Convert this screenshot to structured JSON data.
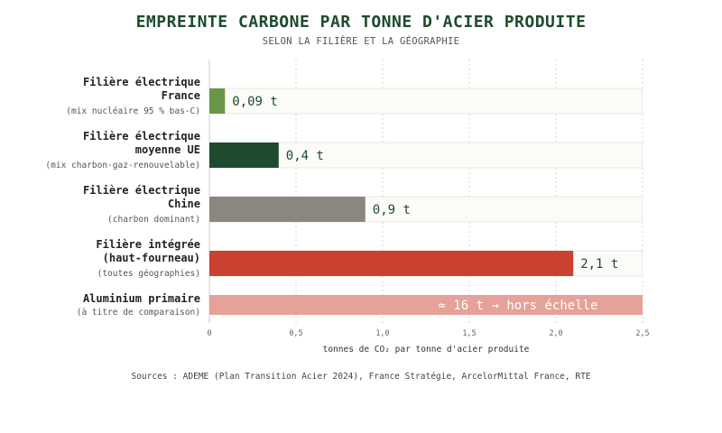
{
  "chart_data": {
    "type": "bar",
    "orientation": "horizontal",
    "title": "EMPREINTE CARBONE PAR TONNE D'ACIER PRODUITE",
    "subtitle": "SELON LA FILIÈRE ET LA GÉOGRAPHIE",
    "xlabel": "tonnes de CO₂ par tonne d'acier produite",
    "xlim": [
      0,
      2.5
    ],
    "ticks": [
      0,
      0.5,
      1,
      1.5,
      2,
      2.5
    ],
    "tick_labels": [
      "0",
      "0,5",
      "1,0",
      "1,5",
      "2,0",
      "2,5"
    ],
    "grid": true,
    "categories": [
      {
        "lines": [
          "Filière électrique",
          "France"
        ],
        "note": "(mix nucléaire 95 % bas-C)",
        "value": 0.09,
        "label": "0,09 t",
        "color": "#6a9649"
      },
      {
        "lines": [
          "Filière électrique",
          "moyenne UE"
        ],
        "note": "(mix charbon-gaz-renouvelable)",
        "value": 0.4,
        "label": "0,4 t",
        "color": "#1e4a2d"
      },
      {
        "lines": [
          "Filière électrique",
          "Chine"
        ],
        "note": "(charbon dominant)",
        "value": 0.9,
        "label": "0,9 t",
        "color": "#8a8780"
      },
      {
        "lines": [
          "Filière intégrée",
          "(haut-fourneau)"
        ],
        "note": "(toutes géographies)",
        "value": 2.1,
        "label": "2,1 t",
        "color": "#cc402f"
      },
      {
        "lines": [
          "Aluminium primaire"
        ],
        "note": "(à titre de comparaison)",
        "value": 16,
        "label": "≈ 16 t  →  hors échelle",
        "color": "#e6a198",
        "off_scale": true
      }
    ]
  },
  "source": "Sources : ADEME (Plan Transition Acier 2024), France Stratégie, ArcelorMittal France, RTE"
}
